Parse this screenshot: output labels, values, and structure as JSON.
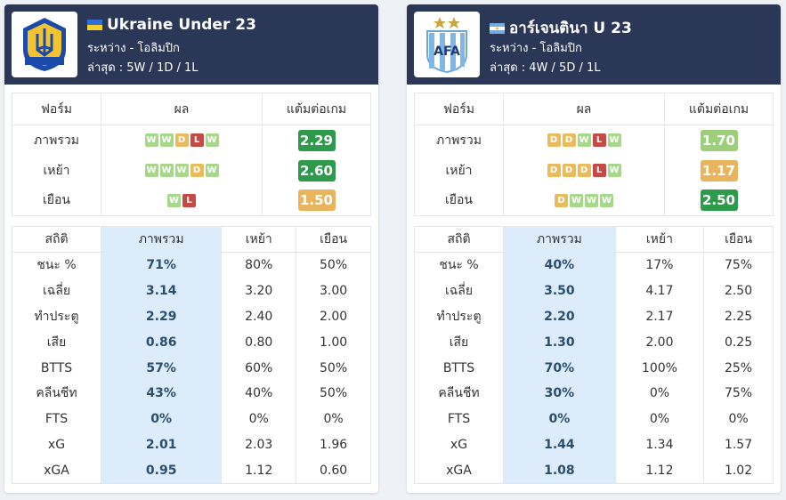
{
  "colors": {
    "header_bg": "#2b3757",
    "win": "#a6d78a",
    "draw": "#e8bc5e",
    "loss": "#c44b45",
    "highlight": "#dcecfa"
  },
  "teams": [
    {
      "name": "Ukraine Under 23",
      "flag": "ukraine-flag-icon",
      "logo": "ukraine-federation-crest-icon",
      "between": "ระหว่าง - โอลิมปิก",
      "recent": "ล่าสุด : 5W / 1D / 1L",
      "form_headers": [
        "ฟอร์ม",
        "ผล",
        "แต้มต่อเกม"
      ],
      "form_rows": [
        {
          "label": "ภาพรวม",
          "results": [
            "W",
            "W",
            "D",
            "L",
            "W"
          ],
          "ppg": "2.29",
          "ppg_color": "#2e9a4c"
        },
        {
          "label": "เหย้า",
          "results": [
            "W",
            "W",
            "W",
            "D",
            "W"
          ],
          "ppg": "2.60",
          "ppg_color": "#2e9a4c"
        },
        {
          "label": "เยือน",
          "results": [
            "W",
            "L"
          ],
          "ppg": "1.50",
          "ppg_color": "#e8b45e"
        }
      ],
      "stats_headers": [
        "สถิติ",
        "ภาพรวม",
        "เหย้า",
        "เยือน"
      ],
      "stats_rows": [
        {
          "label": "ชนะ %",
          "overall": "71%",
          "home": "80%",
          "away": "50%"
        },
        {
          "label": "เฉลี่ย",
          "overall": "3.14",
          "home": "3.20",
          "away": "3.00"
        },
        {
          "label": "ทำประตู",
          "overall": "2.29",
          "home": "2.40",
          "away": "2.00"
        },
        {
          "label": "เสีย",
          "overall": "0.86",
          "home": "0.80",
          "away": "1.00"
        },
        {
          "label": "BTTS",
          "overall": "57%",
          "home": "60%",
          "away": "50%"
        },
        {
          "label": "คลีนชีท",
          "overall": "43%",
          "home": "40%",
          "away": "50%"
        },
        {
          "label": "FTS",
          "overall": "0%",
          "home": "0%",
          "away": "0%"
        },
        {
          "label": "xG",
          "overall": "2.01",
          "home": "2.03",
          "away": "1.96"
        },
        {
          "label": "xGA",
          "overall": "0.95",
          "home": "1.12",
          "away": "0.60"
        }
      ]
    },
    {
      "name": "อาร์เจนตินา U 23",
      "flag": "argentina-flag-icon",
      "logo": "afa-crest-icon",
      "logo_text": "AFA",
      "between": "ระหว่าง - โอลิมปิก",
      "recent": "ล่าสุด : 4W / 5D / 1L",
      "form_headers": [
        "ฟอร์ม",
        "ผล",
        "แต้มต่อเกม"
      ],
      "form_rows": [
        {
          "label": "ภาพรวม",
          "results": [
            "D",
            "D",
            "W",
            "L",
            "W"
          ],
          "ppg": "1.70",
          "ppg_color": "#9dcf7a"
        },
        {
          "label": "เหย้า",
          "results": [
            "D",
            "D",
            "D",
            "L",
            "W"
          ],
          "ppg": "1.17",
          "ppg_color": "#e8b45e"
        },
        {
          "label": "เยือน",
          "results": [
            "D",
            "W",
            "W",
            "W"
          ],
          "ppg": "2.50",
          "ppg_color": "#2e9a4c"
        }
      ],
      "stats_headers": [
        "สถิติ",
        "ภาพรวม",
        "เหย้า",
        "เยือน"
      ],
      "stats_rows": [
        {
          "label": "ชนะ %",
          "overall": "40%",
          "home": "17%",
          "away": "75%"
        },
        {
          "label": "เฉลี่ย",
          "overall": "3.50",
          "home": "4.17",
          "away": "2.50"
        },
        {
          "label": "ทำประตู",
          "overall": "2.20",
          "home": "2.17",
          "away": "2.25"
        },
        {
          "label": "เสีย",
          "overall": "1.30",
          "home": "2.00",
          "away": "0.25"
        },
        {
          "label": "BTTS",
          "overall": "70%",
          "home": "100%",
          "away": "25%"
        },
        {
          "label": "คลีนชีท",
          "overall": "30%",
          "home": "0%",
          "away": "75%"
        },
        {
          "label": "FTS",
          "overall": "0%",
          "home": "0%",
          "away": "0%"
        },
        {
          "label": "xG",
          "overall": "1.44",
          "home": "1.34",
          "away": "1.57"
        },
        {
          "label": "xGA",
          "overall": "1.08",
          "home": "1.12",
          "away": "1.02"
        }
      ]
    }
  ]
}
